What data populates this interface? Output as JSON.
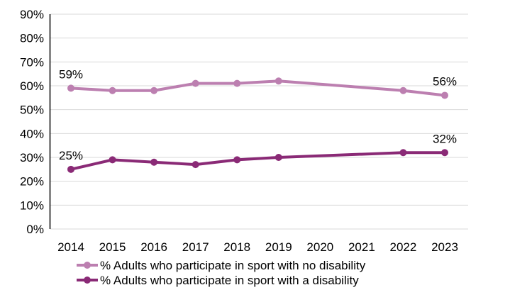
{
  "chart_data": {
    "type": "line",
    "title": "",
    "xlabel": "",
    "ylabel": "",
    "categories": [
      "2014",
      "2015",
      "2016",
      "2017",
      "2018",
      "2019",
      "2020",
      "2021",
      "2022",
      "2023"
    ],
    "ylim": [
      0,
      90
    ],
    "yticks": [
      "0%",
      "10%",
      "20%",
      "30%",
      "40%",
      "50%",
      "60%",
      "70%",
      "80%",
      "90%"
    ],
    "grid": true,
    "legend_position": "bottom",
    "series": [
      {
        "name": "% Adults who participate in sport with no disability",
        "color": "#BC7FB0",
        "values": [
          59,
          58,
          58,
          61,
          61,
          62,
          null,
          null,
          58,
          56
        ],
        "data_labels": [
          {
            "index": 0,
            "text": "59%"
          },
          {
            "index": 9,
            "text": "56%"
          }
        ]
      },
      {
        "name": "% Adults who participate in sport with a disability",
        "color": "#8A2A76",
        "values": [
          25,
          29,
          28,
          27,
          29,
          30,
          null,
          null,
          32,
          32
        ],
        "data_labels": [
          {
            "index": 0,
            "text": "25%"
          },
          {
            "index": 9,
            "text": "32%"
          }
        ]
      }
    ]
  }
}
